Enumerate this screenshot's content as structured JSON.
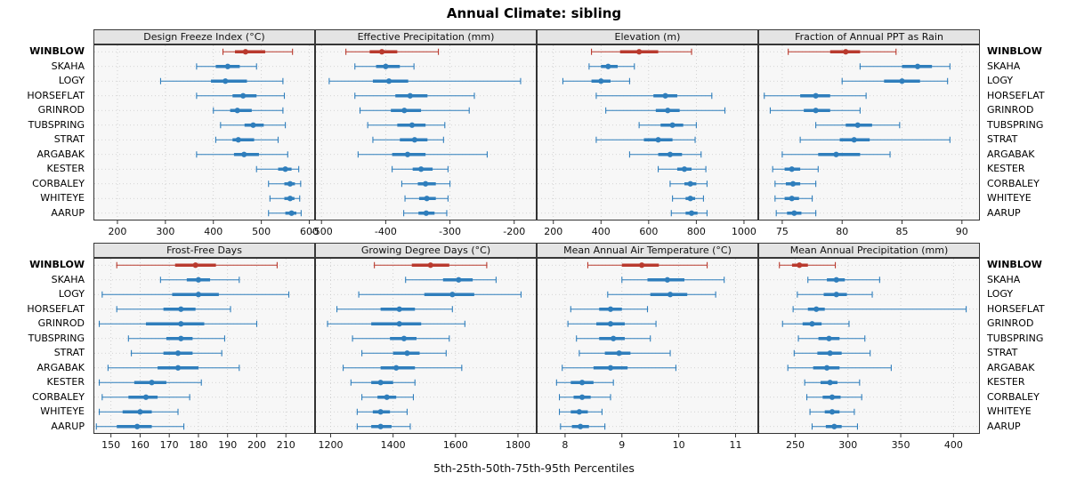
{
  "chart_data": {
    "type": "interval-dotplot",
    "title": "Annual Climate: sibling",
    "caption": "5th-25th-50th-75th-95th Percentiles",
    "percentiles": [
      5,
      25,
      50,
      75,
      95
    ],
    "stations": [
      "WINBLOW",
      "SKAHA",
      "LOGY",
      "HORSEFLAT",
      "GRINROD",
      "TUBSPRING",
      "STRAT",
      "ARGABAK",
      "KESTER",
      "CORBALEY",
      "WHITEYE",
      "AARUP"
    ],
    "highlight_station": "WINBLOW",
    "legend_position": "none",
    "grid": "dotted",
    "colors": {
      "normal": "#2f7ebc",
      "highlight": "#b93a2e",
      "strip_bg": "#e4e4e4",
      "panel_bg": "#f7f7f7",
      "grid": "#c8c8c8",
      "border": "#333333"
    },
    "layout": {
      "rows": 2,
      "cols": 4
    },
    "panels": [
      {
        "title": "Design Freeze Index (°C)",
        "xlim": [
          150,
          612
        ],
        "ticks": [
          200,
          300,
          400,
          500,
          600
        ],
        "values": {
          "WINBLOW": [
            420,
            445,
            467,
            508,
            565
          ],
          "SKAHA": [
            365,
            405,
            430,
            455,
            490
          ],
          "LOGY": [
            290,
            395,
            425,
            470,
            545
          ],
          "HORSEFLAT": [
            365,
            440,
            462,
            490,
            548
          ],
          "GRINROD": [
            400,
            435,
            450,
            480,
            545
          ],
          "TUBSPRING": [
            415,
            465,
            483,
            505,
            550
          ],
          "STRAT": [
            405,
            440,
            452,
            485,
            535
          ],
          "ARGABAK": [
            365,
            443,
            464,
            495,
            555
          ],
          "KESTER": [
            490,
            535,
            550,
            563,
            578
          ],
          "CORBALEY": [
            515,
            548,
            560,
            570,
            582
          ],
          "WHITEYE": [
            518,
            548,
            560,
            569,
            580
          ],
          "AARUP": [
            515,
            550,
            563,
            573,
            583
          ]
        }
      },
      {
        "title": "Effective Precipitation (mm)",
        "xlim": [
          -510,
          -165
        ],
        "ticks": [
          -500,
          -400,
          -300,
          -200
        ],
        "values": {
          "WINBLOW": [
            -462,
            -425,
            -406,
            -382,
            -318
          ],
          "SKAHA": [
            -448,
            -415,
            -400,
            -378,
            -356
          ],
          "LOGY": [
            -488,
            -420,
            -395,
            -365,
            -190
          ],
          "HORSEFLAT": [
            -448,
            -385,
            -362,
            -335,
            -262
          ],
          "GRINROD": [
            -440,
            -392,
            -371,
            -345,
            -270
          ],
          "TUBSPRING": [
            -428,
            -382,
            -359,
            -338,
            -308
          ],
          "STRAT": [
            -420,
            -378,
            -355,
            -335,
            -310
          ],
          "ARGABAK": [
            -443,
            -390,
            -366,
            -338,
            -242
          ],
          "KESTER": [
            -390,
            -358,
            -345,
            -327,
            -303
          ],
          "CORBALEY": [
            -375,
            -350,
            -338,
            -322,
            -300
          ],
          "WHITEYE": [
            -370,
            -348,
            -336,
            -322,
            -303
          ],
          "AARUP": [
            -372,
            -349,
            -337,
            -324,
            -305
          ]
        }
      },
      {
        "title": "Elevation (m)",
        "xlim": [
          130,
          1060
        ],
        "ticks": [
          200,
          400,
          600,
          800,
          1000
        ],
        "values": {
          "WINBLOW": [
            360,
            480,
            560,
            640,
            780
          ],
          "SKAHA": [
            350,
            400,
            430,
            470,
            540
          ],
          "LOGY": [
            240,
            360,
            400,
            440,
            520
          ],
          "HORSEFLAT": [
            380,
            620,
            670,
            720,
            865
          ],
          "GRINROD": [
            420,
            630,
            680,
            730,
            920
          ],
          "TUBSPRING": [
            560,
            650,
            700,
            745,
            800
          ],
          "STRAT": [
            380,
            580,
            640,
            700,
            795
          ],
          "ARGABAK": [
            520,
            640,
            690,
            740,
            820
          ],
          "KESTER": [
            640,
            720,
            750,
            780,
            840
          ],
          "CORBALEY": [
            690,
            750,
            775,
            800,
            845
          ],
          "WHITEYE": [
            700,
            755,
            775,
            795,
            830
          ],
          "AARUP": [
            695,
            755,
            780,
            805,
            845
          ]
        }
      },
      {
        "title": "Fraction of Annual PPT as Rain",
        "xlim": [
          73,
          91.5
        ],
        "ticks": [
          75,
          80,
          85,
          90
        ],
        "values": {
          "WINBLOW": [
            75.5,
            79.0,
            80.3,
            81.5,
            84.5
          ],
          "SKAHA": [
            81.5,
            85.0,
            86.3,
            87.5,
            89.0
          ],
          "LOGY": [
            80.0,
            83.5,
            85.0,
            86.5,
            88.8
          ],
          "HORSEFLAT": [
            73.5,
            76.5,
            77.8,
            79.0,
            82.0
          ],
          "GRINROD": [
            74.0,
            76.8,
            77.8,
            79.0,
            81.5
          ],
          "TUBSPRING": [
            77.8,
            80.3,
            81.3,
            82.5,
            84.8
          ],
          "STRAT": [
            76.5,
            79.8,
            81.0,
            82.3,
            89.0
          ],
          "ARGABAK": [
            75.0,
            78.0,
            79.5,
            81.5,
            84.0
          ],
          "KESTER": [
            74.2,
            75.2,
            75.8,
            76.5,
            78.0
          ],
          "CORBALEY": [
            74.4,
            75.3,
            75.9,
            76.5,
            77.8
          ],
          "WHITEYE": [
            74.4,
            75.2,
            75.8,
            76.4,
            77.5
          ],
          "AARUP": [
            74.5,
            75.4,
            76.0,
            76.6,
            77.8
          ]
        }
      },
      {
        "title": "Frost-Free Days",
        "xlim": [
          144,
          220
        ],
        "ticks": [
          150,
          160,
          170,
          180,
          190,
          200,
          210
        ],
        "values": {
          "WINBLOW": [
            152,
            172,
            179,
            186,
            207
          ],
          "SKAHA": [
            167,
            176,
            180,
            184,
            194
          ],
          "LOGY": [
            147,
            171,
            180,
            187,
            211
          ],
          "HORSEFLAT": [
            152,
            168,
            174,
            179,
            191
          ],
          "GRINROD": [
            146,
            162,
            174,
            182,
            200
          ],
          "TUBSPRING": [
            156,
            169,
            174,
            178,
            189
          ],
          "STRAT": [
            157,
            168,
            173,
            178,
            188
          ],
          "ARGABAK": [
            149,
            166,
            173,
            180,
            194
          ],
          "KESTER": [
            146,
            158,
            164,
            169,
            181
          ],
          "CORBALEY": [
            147,
            156,
            162,
            166,
            177
          ],
          "WHITEYE": [
            146,
            154,
            160,
            164,
            173
          ],
          "AARUP": [
            145,
            152,
            159,
            164,
            175
          ]
        }
      },
      {
        "title": "Growing Degree Days (°C)",
        "xlim": [
          1150,
          1860
        ],
        "ticks": [
          1200,
          1400,
          1600,
          1800
        ],
        "values": {
          "WINBLOW": [
            1340,
            1460,
            1520,
            1580,
            1700
          ],
          "SKAHA": [
            1440,
            1560,
            1610,
            1655,
            1730
          ],
          "LOGY": [
            1290,
            1500,
            1590,
            1660,
            1810
          ],
          "HORSEFLAT": [
            1220,
            1360,
            1420,
            1470,
            1590
          ],
          "GRINROD": [
            1190,
            1330,
            1420,
            1490,
            1630
          ],
          "TUBSPRING": [
            1270,
            1390,
            1435,
            1475,
            1580
          ],
          "STRAT": [
            1300,
            1400,
            1445,
            1485,
            1570
          ],
          "ARGABAK": [
            1240,
            1360,
            1410,
            1470,
            1620
          ],
          "KESTER": [
            1265,
            1330,
            1360,
            1400,
            1470
          ],
          "CORBALEY": [
            1300,
            1350,
            1380,
            1410,
            1465
          ],
          "WHITEYE": [
            1285,
            1335,
            1360,
            1390,
            1445
          ],
          "AARUP": [
            1285,
            1330,
            1360,
            1395,
            1455
          ]
        }
      },
      {
        "title": "Mean Annual Air Temperature (°C)",
        "xlim": [
          7.5,
          11.4
        ],
        "ticks": [
          8,
          9,
          10,
          11
        ],
        "values": {
          "WINBLOW": [
            8.4,
            9.0,
            9.35,
            9.65,
            10.5
          ],
          "SKAHA": [
            9.0,
            9.45,
            9.8,
            10.1,
            10.8
          ],
          "LOGY": [
            8.75,
            9.5,
            9.85,
            10.15,
            10.65
          ],
          "HORSEFLAT": [
            8.1,
            8.6,
            8.8,
            9.0,
            9.45
          ],
          "GRINROD": [
            8.05,
            8.55,
            8.8,
            9.05,
            9.6
          ],
          "TUBSPRING": [
            8.2,
            8.6,
            8.85,
            9.05,
            9.5
          ],
          "STRAT": [
            8.25,
            8.7,
            8.95,
            9.15,
            9.85
          ],
          "ARGABAK": [
            7.95,
            8.5,
            8.8,
            9.1,
            9.95
          ],
          "KESTER": [
            7.85,
            8.1,
            8.3,
            8.5,
            8.85
          ],
          "CORBALEY": [
            7.9,
            8.15,
            8.3,
            8.45,
            8.8
          ],
          "WHITEYE": [
            7.9,
            8.1,
            8.25,
            8.4,
            8.65
          ],
          "AARUP": [
            7.92,
            8.12,
            8.27,
            8.42,
            8.7
          ]
        }
      },
      {
        "title": "Mean Annual Precipitation (mm)",
        "xlim": [
          215,
          425
        ],
        "ticks": [
          250,
          300,
          350,
          400
        ],
        "values": {
          "WINBLOW": [
            235,
            247,
            254,
            262,
            288
          ],
          "SKAHA": [
            262,
            280,
            289,
            297,
            330
          ],
          "LOGY": [
            252,
            277,
            289,
            299,
            323
          ],
          "HORSEFLAT": [
            248,
            262,
            270,
            278,
            412
          ],
          "GRINROD": [
            238,
            257,
            266,
            275,
            301
          ],
          "TUBSPRING": [
            253,
            272,
            282,
            292,
            316
          ],
          "STRAT": [
            249,
            271,
            283,
            294,
            321
          ],
          "ARGABAK": [
            243,
            267,
            280,
            292,
            341
          ],
          "KESTER": [
            259,
            274,
            283,
            290,
            311
          ],
          "CORBALEY": [
            261,
            276,
            285,
            293,
            313
          ],
          "WHITEYE": [
            264,
            278,
            285,
            292,
            306
          ],
          "AARUP": [
            266,
            279,
            287,
            294,
            309
          ]
        }
      }
    ]
  }
}
